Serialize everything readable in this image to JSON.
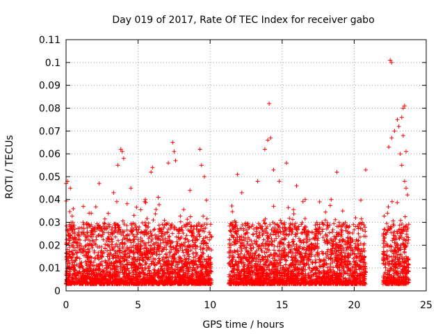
{
  "chart_data": {
    "type": "scatter",
    "title": "Day 019 of 2017, Rate Of TEC Index for receiver gabo",
    "xlabel": "GPS time / hours",
    "ylabel": "ROTI / TECUs",
    "xlim": [
      0,
      25
    ],
    "ylim": [
      0,
      0.11
    ],
    "x_ticks": [
      0,
      5,
      10,
      15,
      20,
      25
    ],
    "x_tick_labels": [
      "0",
      "5",
      "10",
      "15",
      "20",
      "25"
    ],
    "y_ticks": [
      0,
      0.01,
      0.02,
      0.03,
      0.04,
      0.05,
      0.06,
      0.07,
      0.08,
      0.09,
      0.1,
      0.11
    ],
    "y_tick_labels": [
      "0",
      "0.01",
      "0.02",
      "0.03",
      "0.04",
      "0.05",
      "0.06",
      "0.07",
      "0.08",
      "0.09",
      "0.1",
      "0.11"
    ],
    "grid": true,
    "legend": "none",
    "marker": "+",
    "color": "#ff0000",
    "data_segments": [
      [
        0,
        10.1
      ],
      [
        11.3,
        20.8
      ],
      [
        22,
        23.8
      ]
    ],
    "baseline_range": [
      0.003,
      0.03
    ],
    "series": [
      {
        "points": [
          [
            0.0,
            0.047
          ],
          [
            0.1,
            0.048
          ],
          [
            0.3,
            0.045
          ],
          [
            0.5,
            0.036
          ],
          [
            1.2,
            0.037
          ],
          [
            1.6,
            0.034
          ],
          [
            2.3,
            0.047
          ],
          [
            3.3,
            0.043
          ],
          [
            3.6,
            0.055
          ],
          [
            3.8,
            0.062
          ],
          [
            3.9,
            0.061
          ],
          [
            4.0,
            0.058
          ],
          [
            4.5,
            0.045
          ],
          [
            5.5,
            0.04
          ],
          [
            5.9,
            0.052
          ],
          [
            6.0,
            0.054
          ],
          [
            6.4,
            0.041
          ],
          [
            7.1,
            0.056
          ],
          [
            7.4,
            0.065
          ],
          [
            7.5,
            0.061
          ],
          [
            7.6,
            0.057
          ],
          [
            8.6,
            0.044
          ],
          [
            9.3,
            0.062
          ],
          [
            9.4,
            0.055
          ],
          [
            9.6,
            0.05
          ],
          [
            11.9,
            0.051
          ],
          [
            12.2,
            0.043
          ],
          [
            13.3,
            0.048
          ],
          [
            13.8,
            0.062
          ],
          [
            14.0,
            0.066
          ],
          [
            14.1,
            0.082
          ],
          [
            14.2,
            0.067
          ],
          [
            14.4,
            0.053
          ],
          [
            14.8,
            0.048
          ],
          [
            15.3,
            0.056
          ],
          [
            16.0,
            0.046
          ],
          [
            16.6,
            0.04
          ],
          [
            17.6,
            0.039
          ],
          [
            18.4,
            0.04
          ],
          [
            18.8,
            0.052
          ],
          [
            19.2,
            0.035
          ],
          [
            20.1,
            0.032
          ],
          [
            20.8,
            0.053
          ],
          [
            22.5,
            0.101
          ],
          [
            22.6,
            0.1
          ],
          [
            22.4,
            0.063
          ],
          [
            22.6,
            0.067
          ],
          [
            22.8,
            0.07
          ],
          [
            23.0,
            0.075
          ],
          [
            23.1,
            0.072
          ],
          [
            23.2,
            0.06
          ],
          [
            23.3,
            0.076
          ],
          [
            23.4,
            0.08
          ],
          [
            23.5,
            0.081
          ],
          [
            23.4,
            0.068
          ],
          [
            23.6,
            0.061
          ],
          [
            23.3,
            0.055
          ],
          [
            23.5,
            0.048
          ],
          [
            23.6,
            0.045
          ],
          [
            23.7,
            0.042
          ]
        ]
      }
    ]
  }
}
